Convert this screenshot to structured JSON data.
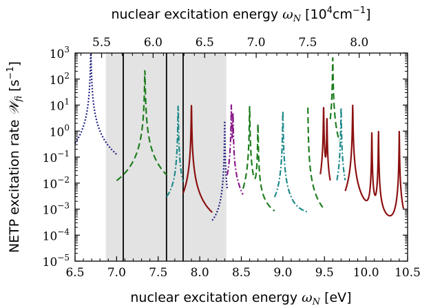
{
  "chart_data": {
    "type": "line",
    "xlabel_prefix": "nuclear excitation energy ",
    "xlabel_symbol": "ω",
    "xlabel_sub": "N",
    "xlabel_unit": " [eV]",
    "top_label_prefix": "nuclear excitation energy ",
    "top_label_symbol": "ω",
    "top_label_sub": "N",
    "top_label_unit_open": " [10",
    "top_label_unit_exp": "4",
    "top_label_unit_mid": "cm",
    "top_label_unit_exp2": "−1",
    "top_label_unit_close": "]",
    "ylabel_prefix": "NETP excitation rate ",
    "ylabel_symbol": "𝒲",
    "ylabel_sub": "fi",
    "ylabel_unit_open": " [s",
    "ylabel_unit_exp": "−1",
    "ylabel_unit_close": "]",
    "xlim": [
      6.5,
      10.5
    ],
    "ylog": true,
    "ylim": [
      1e-05,
      1000
    ],
    "x_ticks": [
      6.5,
      7.0,
      7.5,
      8.0,
      8.5,
      9.0,
      9.5,
      10.0,
      10.5
    ],
    "x_tick_labels": [
      "6.5",
      "7.0",
      "7.5",
      "8.0",
      "8.5",
      "9.0",
      "9.5",
      "10.0",
      "10.5"
    ],
    "top_ticks": [
      5.5,
      6.0,
      6.5,
      7.0,
      7.5,
      8.0
    ],
    "top_tick_labels": [
      "5.5",
      "6.0",
      "6.5",
      "7.0",
      "7.5",
      "8.0"
    ],
    "y_tick_exponents": [
      -5,
      -4,
      -3,
      -2,
      -1,
      0,
      1,
      2,
      3
    ],
    "y_tick_base": "10",
    "shaded_band": [
      6.87,
      8.32
    ],
    "vertical_lines": [
      7.08,
      7.6,
      7.8
    ],
    "colors": {
      "navy": "#1a1a80",
      "green": "#1e7d1e",
      "teal": "#1e8a8a",
      "purple": "#8a1a8a",
      "darkred": "#8b1010",
      "band": "#e3e3e3"
    },
    "resonances": [
      {
        "style": "navy",
        "x0": 6.5,
        "x1": 7.0,
        "peaks": [
          [
            6.69,
            1000,
            0.0035
          ]
        ],
        "floor": 0.0006
      },
      {
        "style": "green",
        "x0": 7.0,
        "x1": 7.6,
        "peaks": [
          [
            7.34,
            220,
            0.0025
          ]
        ],
        "floor": 0.0006
      },
      {
        "style": "teal",
        "x0": 7.6,
        "x1": 7.8,
        "peaks": [
          [
            7.74,
            9,
            0.002
          ]
        ],
        "floor": 0.0012
      },
      {
        "style": "darkred",
        "x0": 7.8,
        "x1": 8.15,
        "peaks": [
          [
            7.9,
            10,
            0.002
          ]
        ],
        "floor": 0.00011
      },
      {
        "style": "navy",
        "x0": 8.15,
        "x1": 8.33,
        "peaks": [
          [
            8.3,
            2.5,
            0.0015
          ]
        ],
        "floor": 0.00012
      },
      {
        "style": "purple",
        "x0": 8.33,
        "x1": 8.52,
        "peaks": [
          [
            8.38,
            10,
            0.002
          ],
          [
            8.4,
            5,
            0.002
          ]
        ],
        "floor": 0.0002
      },
      {
        "style": "green",
        "x0": 8.52,
        "x1": 8.9,
        "peaks": [
          [
            8.6,
            9,
            0.002
          ],
          [
            8.7,
            2,
            0.002
          ]
        ],
        "floor": 0.00025
      },
      {
        "style": "teal",
        "x0": 8.9,
        "x1": 9.3,
        "peaks": [
          [
            9.0,
            6,
            0.002
          ]
        ],
        "floor": 0.0005
      },
      {
        "style": "green",
        "x0": 9.3,
        "x1": 9.48,
        "peaks": [
          [
            9.3,
            8,
            0.002
          ]
        ],
        "floor": 0.00018
      },
      {
        "style": "darkred",
        "x0": 9.45,
        "x1": 9.57,
        "peaks": [
          [
            9.49,
            8,
            0.002
          ],
          [
            9.53,
            3,
            0.002
          ]
        ],
        "floor": 0.00012
      },
      {
        "style": "green",
        "x0": 9.57,
        "x1": 9.68,
        "peaks": [
          [
            9.6,
            650,
            0.002
          ]
        ],
        "floor": 0.00012
      },
      {
        "style": "teal",
        "x0": 9.65,
        "x1": 9.75,
        "peaks": [
          [
            9.7,
            8,
            0.002
          ]
        ],
        "floor": 0.0001
      },
      {
        "style": "darkred",
        "x0": 9.75,
        "x1": 10.45,
        "peaks": [
          [
            9.84,
            10,
            0.002
          ],
          [
            10.07,
            1,
            0.0015
          ],
          [
            10.15,
            1,
            0.0015
          ],
          [
            10.4,
            1,
            0.0015
          ]
        ],
        "floor": 1.2e-05
      }
    ]
  }
}
